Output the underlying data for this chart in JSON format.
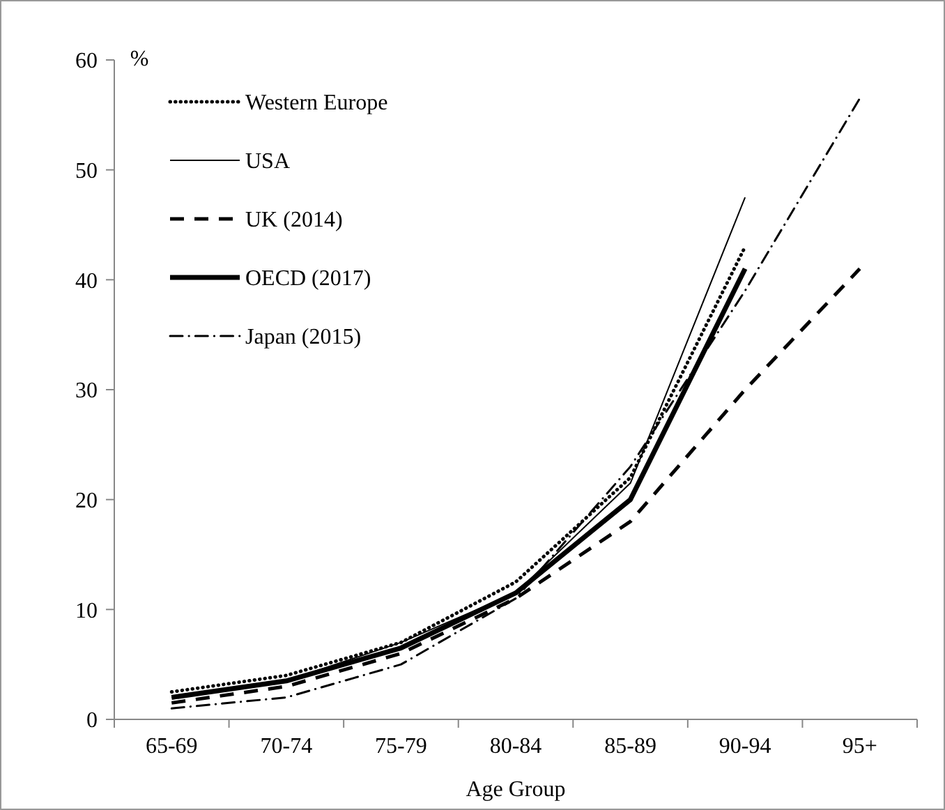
{
  "chart_data": {
    "type": "line",
    "ylabel": "%",
    "xlabel": "Age Group",
    "categories": [
      "65-69",
      "70-74",
      "75-79",
      "80-84",
      "85-89",
      "90-94",
      "95+"
    ],
    "ylim": [
      0,
      60
    ],
    "yticks": [
      0,
      10,
      20,
      30,
      40,
      50,
      60
    ],
    "grid": false,
    "legend": "top left",
    "series": [
      {
        "name": "Western Europe",
        "color": "#000000",
        "line_style": "dotted",
        "values": [
          2.5,
          4,
          7,
          12.5,
          22,
          43,
          null
        ]
      },
      {
        "name": "USA",
        "color": "#000000",
        "line_style": "solid",
        "values": [
          2,
          3.5,
          7,
          11.5,
          21.5,
          47.5,
          null
        ]
      },
      {
        "name": "UK (2014)",
        "color": "#000000",
        "line_style": "dashed",
        "values": [
          1.5,
          3,
          6,
          11,
          18,
          30,
          41
        ]
      },
      {
        "name": "OECD (2017)",
        "color": "#000000",
        "line_style": "solid",
        "values": [
          2,
          3.5,
          6.5,
          11.5,
          20,
          41,
          null
        ]
      },
      {
        "name": "Japan (2015)",
        "color": "#000000",
        "line_style": "dashdot",
        "values": [
          1,
          2,
          5,
          11,
          23,
          39,
          56.5
        ]
      }
    ]
  }
}
